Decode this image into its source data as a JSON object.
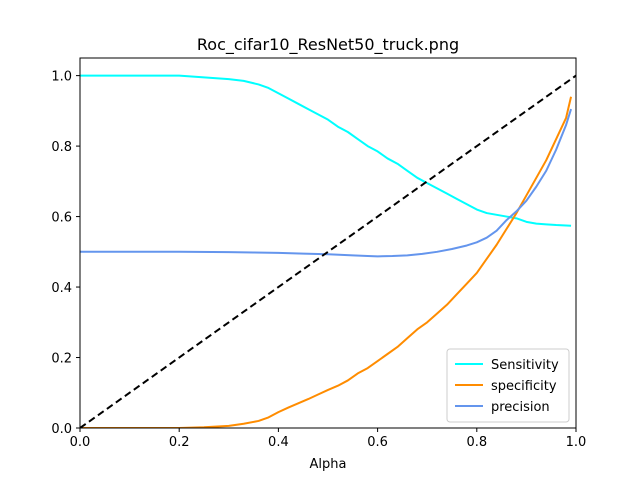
{
  "chart_data": {
    "type": "line",
    "title": "Roc_cifar10_ResNet50_truck.png",
    "xlabel": "Alpha",
    "ylabel": "",
    "xlim": [
      0,
      1
    ],
    "ylim": [
      0,
      1.05
    ],
    "x_ticks": [
      0.0,
      0.2,
      0.4,
      0.6,
      0.8,
      1.0
    ],
    "y_ticks": [
      0.0,
      0.2,
      0.4,
      0.6,
      0.8,
      1.0
    ],
    "x_tick_labels": [
      "0.0",
      "0.2",
      "0.4",
      "0.6",
      "0.8",
      "1.0"
    ],
    "y_tick_labels": [
      "0.0",
      "0.2",
      "0.4",
      "0.6",
      "0.8",
      "1.0"
    ],
    "grid": false,
    "legend_position": "lower-right",
    "series": [
      {
        "name": "Sensitivity",
        "color": "#00FFFF",
        "x": [
          0.0,
          0.05,
          0.1,
          0.15,
          0.2,
          0.25,
          0.3,
          0.33,
          0.36,
          0.38,
          0.4,
          0.42,
          0.44,
          0.46,
          0.48,
          0.5,
          0.52,
          0.54,
          0.56,
          0.58,
          0.6,
          0.62,
          0.64,
          0.66,
          0.68,
          0.7,
          0.72,
          0.74,
          0.76,
          0.78,
          0.8,
          0.82,
          0.84,
          0.86,
          0.88,
          0.9,
          0.92,
          0.94,
          0.96,
          0.99
        ],
        "y": [
          1.0,
          1.0,
          1.0,
          1.0,
          1.0,
          0.995,
          0.99,
          0.985,
          0.975,
          0.965,
          0.95,
          0.935,
          0.92,
          0.905,
          0.89,
          0.875,
          0.855,
          0.84,
          0.82,
          0.8,
          0.785,
          0.765,
          0.75,
          0.73,
          0.71,
          0.695,
          0.68,
          0.665,
          0.65,
          0.635,
          0.62,
          0.61,
          0.605,
          0.6,
          0.595,
          0.585,
          0.58,
          0.578,
          0.576,
          0.574
        ]
      },
      {
        "name": "specificity",
        "color": "#FF8C00",
        "x": [
          0.0,
          0.1,
          0.2,
          0.25,
          0.3,
          0.33,
          0.36,
          0.38,
          0.4,
          0.42,
          0.44,
          0.46,
          0.48,
          0.5,
          0.52,
          0.54,
          0.56,
          0.58,
          0.6,
          0.62,
          0.64,
          0.66,
          0.68,
          0.7,
          0.72,
          0.74,
          0.76,
          0.78,
          0.8,
          0.82,
          0.84,
          0.86,
          0.88,
          0.9,
          0.92,
          0.94,
          0.96,
          0.98,
          0.99
        ],
        "y": [
          0.0,
          0.0,
          0.0,
          0.002,
          0.006,
          0.012,
          0.02,
          0.03,
          0.045,
          0.058,
          0.07,
          0.082,
          0.095,
          0.108,
          0.12,
          0.135,
          0.155,
          0.17,
          0.19,
          0.21,
          0.23,
          0.255,
          0.28,
          0.3,
          0.325,
          0.35,
          0.38,
          0.41,
          0.44,
          0.48,
          0.52,
          0.565,
          0.61,
          0.66,
          0.71,
          0.76,
          0.82,
          0.88,
          0.94
        ]
      },
      {
        "name": "precision",
        "color": "#6495ED",
        "x": [
          0.0,
          0.1,
          0.2,
          0.3,
          0.35,
          0.4,
          0.45,
          0.5,
          0.55,
          0.58,
          0.6,
          0.63,
          0.66,
          0.69,
          0.72,
          0.75,
          0.78,
          0.8,
          0.82,
          0.84,
          0.86,
          0.88,
          0.9,
          0.92,
          0.94,
          0.96,
          0.98,
          0.99
        ],
        "y": [
          0.5,
          0.5,
          0.5,
          0.499,
          0.498,
          0.497,
          0.495,
          0.493,
          0.49,
          0.488,
          0.487,
          0.488,
          0.49,
          0.494,
          0.5,
          0.508,
          0.518,
          0.527,
          0.54,
          0.56,
          0.59,
          0.615,
          0.645,
          0.685,
          0.73,
          0.79,
          0.86,
          0.905
        ]
      },
      {
        "name": "",
        "color": "#000000",
        "dashed": true,
        "x": [
          0.0,
          1.0
        ],
        "y": [
          0.0,
          1.0
        ]
      }
    ]
  }
}
